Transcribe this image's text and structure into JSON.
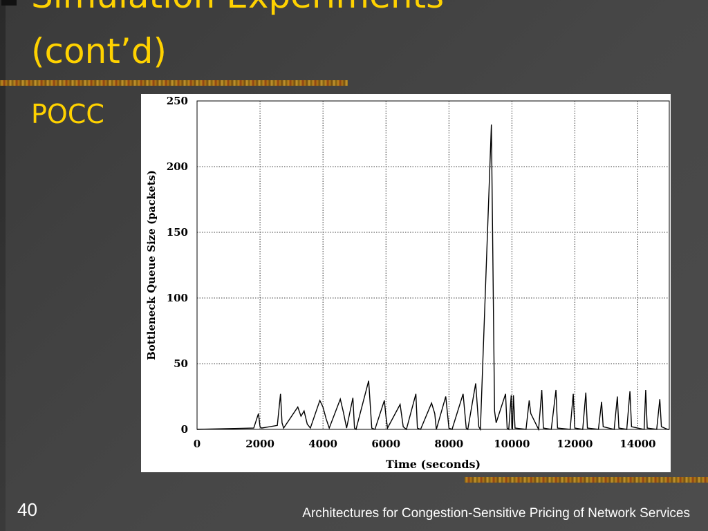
{
  "slide": {
    "title_line1": "Simulation Experiments",
    "title_line2": "(cont’d)",
    "bullet": "POCC",
    "page_number": "40",
    "footer": "Architectures for Congestion-Sensitive Pricing of Network Services"
  },
  "colors": {
    "title": "#ffd200",
    "background": "#444444",
    "footer_text": "#ffffff"
  },
  "chart_data": {
    "type": "line",
    "title": "",
    "xlabel": "Time (seconds)",
    "ylabel": "Bottleneck Queue Size (packets)",
    "xlim": [
      0,
      15000
    ],
    "ylim": [
      0,
      250
    ],
    "xticks": [
      0,
      2000,
      4000,
      6000,
      8000,
      10000,
      12000,
      14000
    ],
    "yticks": [
      0,
      50,
      100,
      150,
      200,
      250
    ],
    "grid": true,
    "legend": "none",
    "series": [
      {
        "values_description_free": true,
        "x": [
          0,
          1800,
          1950,
          2000,
          2050,
          2550,
          2650,
          2700,
          2750,
          3200,
          3300,
          3400,
          3500,
          3600,
          3900,
          4000,
          4100,
          4200,
          4550,
          4650,
          4750,
          4950,
          5000,
          5050,
          5450,
          5550,
          5650,
          5950,
          6000,
          6050,
          6450,
          6550,
          6650,
          6950,
          7000,
          7100,
          7450,
          7550,
          7600,
          7900,
          8000,
          8100,
          8450,
          8550,
          8600,
          8850,
          8950,
          9000,
          9350,
          9450,
          9500,
          9800,
          9850,
          9900,
          9980,
          10000,
          10020,
          10050,
          10100,
          10450,
          10550,
          10600,
          10850,
          10950,
          11000,
          11250,
          11400,
          11450,
          11850,
          11950,
          12000,
          12250,
          12350,
          12400,
          12750,
          12850,
          12900,
          13250,
          13350,
          13400,
          13650,
          13750,
          13800,
          14200,
          14250,
          14300,
          14600,
          14700,
          14750,
          14950,
          15000
        ],
        "y": [
          0,
          1,
          12,
          2,
          1,
          3,
          27,
          5,
          1,
          17,
          10,
          14,
          4,
          1,
          22,
          17,
          8,
          1,
          23,
          13,
          1,
          24,
          1,
          0,
          37,
          1,
          0,
          22,
          10,
          1,
          19,
          2,
          0,
          27,
          1,
          0,
          20,
          12,
          0,
          25,
          1,
          0,
          27,
          1,
          0,
          35,
          2,
          0,
          232,
          14,
          5,
          27,
          1,
          0,
          26,
          1,
          0,
          26,
          1,
          0,
          22,
          12,
          0,
          30,
          1,
          0,
          30,
          1,
          0,
          27,
          1,
          0,
          28,
          1,
          0,
          21,
          2,
          0,
          25,
          1,
          0,
          29,
          2,
          0,
          30,
          1,
          0,
          23,
          2,
          0,
          0
        ]
      }
    ]
  }
}
